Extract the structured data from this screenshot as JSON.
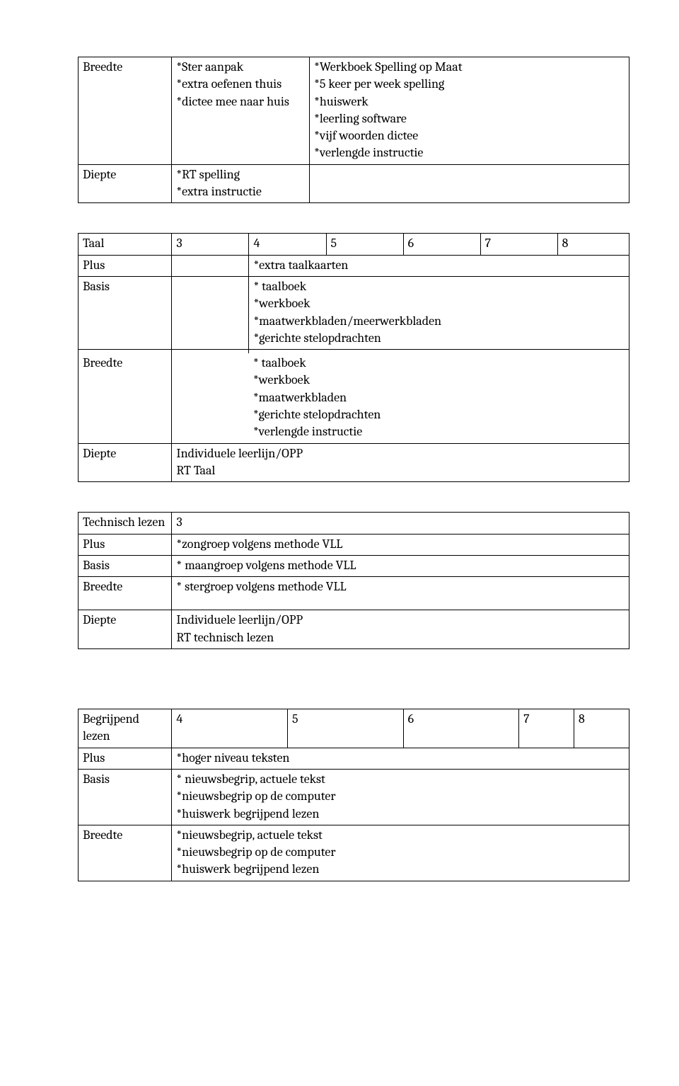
{
  "table1": {
    "row1": {
      "label": "Breedte",
      "col2": "*Ster aanpak\n*extra oefenen thuis\n*dictee mee naar huis",
      "col3": "*Werkboek Spelling op Maat\n*5 keer per week spelling\n*huiswerk\n*leerling software\n*vijf woorden dictee\n*verlengde instructie"
    },
    "row2": {
      "label": "Diepte",
      "col2": "*RT spelling\n*extra instructie"
    }
  },
  "table2": {
    "header": {
      "label": "Taal",
      "c1": "3",
      "c2": "4",
      "c3": "5",
      "c4": "6",
      "c5": "7",
      "c6": "8"
    },
    "row_plus": {
      "label": "Plus",
      "content": "*extra taalkaarten"
    },
    "row_basis": {
      "label": "Basis",
      "content": "* taalboek\n*werkboek\n*maatwerkbladen/meerwerkbladen\n*gerichte stelopdrachten"
    },
    "row_breedte": {
      "label": "Breedte",
      "content": "* taalboek\n*werkboek\n*maatwerkbladen\n*gerichte stelopdrachten\n*verlengde instructie"
    },
    "row_diepte": {
      "label": "Diepte",
      "content": "Individuele leerlijn/OPP\nRT Taal"
    }
  },
  "table3": {
    "row_header": {
      "label": "Technisch lezen",
      "content": "3"
    },
    "row_plus": {
      "label": "Plus",
      "content": "*zongroep volgens methode VLL"
    },
    "row_basis": {
      "label": "Basis",
      "content": "* maangroep volgens methode VLL"
    },
    "row_breedte": {
      "label": "Breedte",
      "content": "* stergroep volgens methode VLL"
    },
    "row_diepte": {
      "label": "Diepte",
      "content": "Individuele leerlijn/OPP\nRT technisch lezen"
    }
  },
  "table4": {
    "header": {
      "label": "Begrijpend lezen",
      "c1": "4",
      "c2": "5",
      "c3": "6",
      "c4": "7",
      "c5": "8"
    },
    "row_plus": {
      "label": "Plus",
      "content": "*hoger niveau teksten"
    },
    "row_basis": {
      "label": "Basis",
      "content": "* nieuwsbegrip, actuele tekst\n*nieuwsbegrip op de computer\n*huiswerk begrijpend lezen"
    },
    "row_breedte": {
      "label": "Breedte",
      "content": "*nieuwsbegrip, actuele tekst\n*nieuwsbegrip op de computer\n*huiswerk begrijpend lezen"
    }
  }
}
